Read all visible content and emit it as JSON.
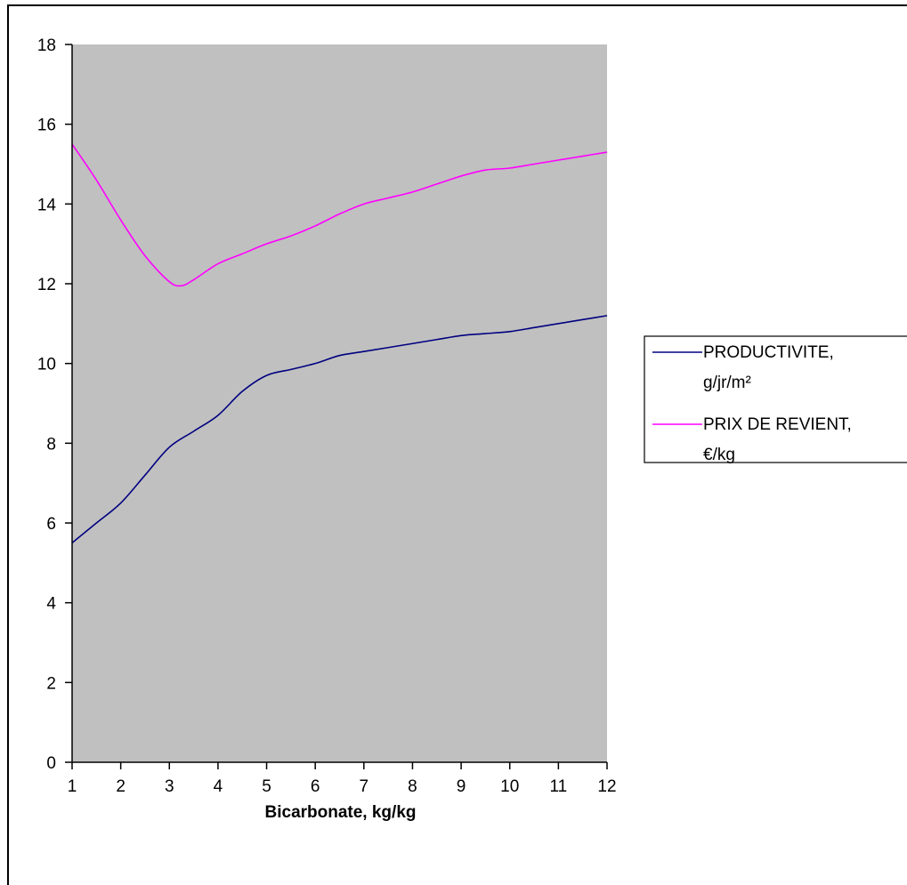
{
  "chart_data": {
    "type": "line",
    "title": "",
    "xlabel": "Bicarbonate, kg/kg",
    "ylabel": "",
    "xlim": [
      1,
      12
    ],
    "ylim": [
      0,
      18
    ],
    "x_ticks": [
      "1",
      "2",
      "3",
      "4",
      "5",
      "6",
      "7",
      "8",
      "9",
      "10",
      "11",
      "12"
    ],
    "y_ticks": [
      "0",
      "2",
      "4",
      "6",
      "8",
      "10",
      "12",
      "14",
      "16",
      "18"
    ],
    "grid": false,
    "legend_position": "right",
    "plot_background": "#c0c0c0",
    "series": [
      {
        "name_lines": [
          "PRODUCTIVITE,",
          "g/jr/m²"
        ],
        "color": "#000080",
        "x": [
          1,
          1.5,
          2,
          2.5,
          3,
          3.5,
          4,
          4.5,
          5,
          5.5,
          6,
          6.5,
          7,
          7.5,
          8,
          8.5,
          9,
          9.5,
          10,
          10.5,
          11,
          11.5,
          12
        ],
        "values": [
          5.5,
          6.0,
          6.5,
          7.2,
          7.9,
          8.3,
          8.7,
          9.3,
          9.7,
          9.85,
          10.0,
          10.2,
          10.3,
          10.4,
          10.5,
          10.6,
          10.7,
          10.75,
          10.8,
          10.9,
          11.0,
          11.1,
          11.2
        ]
      },
      {
        "name_lines": [
          "PRIX DE REVIENT,",
          "€/kg"
        ],
        "color": "#ff00ff",
        "x": [
          1,
          1.5,
          2,
          2.5,
          3,
          3.25,
          3.5,
          4,
          4.5,
          5,
          5.5,
          6,
          6.5,
          7,
          7.5,
          8,
          8.5,
          9,
          9.5,
          10,
          10.5,
          11,
          11.5,
          12
        ],
        "values": [
          15.5,
          14.6,
          13.6,
          12.7,
          12.05,
          11.95,
          12.1,
          12.5,
          12.75,
          13.0,
          13.2,
          13.45,
          13.75,
          14.0,
          14.15,
          14.3,
          14.5,
          14.7,
          14.85,
          14.9,
          15.0,
          15.1,
          15.2,
          15.3
        ]
      }
    ]
  }
}
